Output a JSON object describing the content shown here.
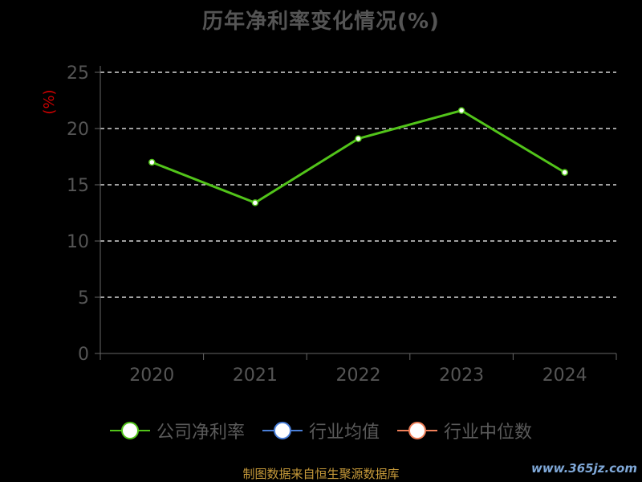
{
  "title": "历年净利率变化情况(%)",
  "source_text": "制图数据来自恒生聚源数据库",
  "watermark": "www.365jz.com",
  "colors": {
    "background": "#000000",
    "company": "#52c41a",
    "industry_avg": "#4a7fd8",
    "industry_median": "#f0805a",
    "unit_label": "#cc0000",
    "axis": "#666666",
    "grid": "#ffffff",
    "tick_text": "#555555"
  },
  "legend": [
    {
      "label": "公司净利率",
      "color": "#52c41a",
      "icon": "circle-line-marker"
    },
    {
      "label": "行业均值",
      "color": "#4a7fd8",
      "icon": "circle-line-marker"
    },
    {
      "label": "行业中位数",
      "color": "#f0805a",
      "icon": "circle-line-marker"
    }
  ],
  "chart_data": {
    "type": "line",
    "title": "历年净利率变化情况(%)",
    "ylabel": "(%)",
    "xlabel": "",
    "categories": [
      "2020",
      "2021",
      "2022",
      "2023",
      "2024"
    ],
    "series": [
      {
        "name": "公司净利率",
        "values": [
          17.0,
          13.4,
          19.1,
          21.6,
          16.1
        ]
      }
    ],
    "ylim": [
      0,
      25
    ],
    "yticks": [
      0,
      5,
      10,
      15,
      20,
      25
    ],
    "grid": true,
    "legend_position": "bottom"
  }
}
